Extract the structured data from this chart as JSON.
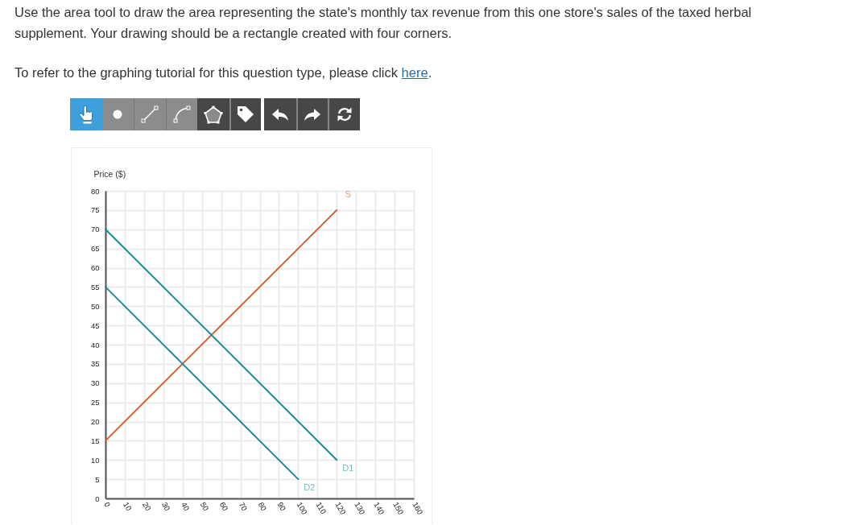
{
  "chart_data": {
    "type": "line",
    "title": "Use the area tool to draw the area representing the state's monthly tax revenue from this one store's sales of the taxed herbal supplement. Your drawing should be a rectangle created with four corners.",
    "subtitle": "To refer to the graphing tutorial for this question type, please click here.",
    "ylabel": "Price ($)",
    "xlim": [
      0,
      160
    ],
    "ylim": [
      0,
      80
    ],
    "xticks": [
      0,
      10,
      20,
      30,
      40,
      50,
      60,
      70,
      80,
      90,
      100,
      110,
      120,
      130,
      140,
      150,
      160
    ],
    "yticks": [
      0,
      5,
      10,
      15,
      20,
      25,
      30,
      35,
      40,
      45,
      50,
      55,
      60,
      65,
      70,
      75,
      80
    ],
    "grid": true,
    "series": [
      {
        "name": "S",
        "color": "#d2622b",
        "x": [
          0,
          120
        ],
        "values": [
          15,
          75
        ]
      },
      {
        "name": "D1",
        "color": "#1b889d",
        "x": [
          0,
          120
        ],
        "values": [
          70,
          10
        ]
      },
      {
        "name": "D2",
        "color": "#1b889d",
        "x": [
          0,
          100
        ],
        "values": [
          55,
          5
        ]
      }
    ]
  }
}
